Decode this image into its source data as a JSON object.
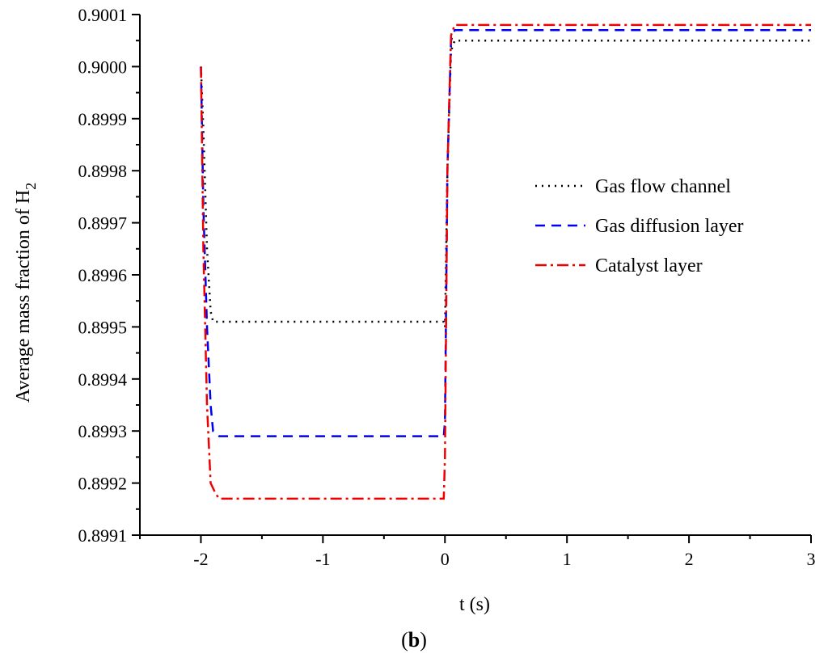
{
  "chart_data": {
    "type": "line",
    "xlabel": "t (s)",
    "ylabel_main": "Average mass fraction of H",
    "ylabel_sub": "2",
    "xlim": [
      -2.5,
      3
    ],
    "ylim": [
      0.8991,
      0.9001
    ],
    "x_ticks": [
      -2,
      -1,
      0,
      1,
      2,
      3
    ],
    "x_tick_labels": [
      "-2",
      "-1",
      "0",
      "1",
      "2",
      "3"
    ],
    "y_ticks": [
      0.8991,
      0.8992,
      0.8993,
      0.8994,
      0.8995,
      0.8996,
      0.8997,
      0.8998,
      0.8999,
      0.9,
      0.9001
    ],
    "y_tick_labels": [
      "0.8991",
      "0.8992",
      "0.8993",
      "0.8994",
      "0.8995",
      "0.8996",
      "0.8997",
      "0.8998",
      "0.8999",
      "0.9000",
      "0.9001"
    ],
    "grid": false,
    "legend_position": "right",
    "series": [
      {
        "name": "Gas flow channel",
        "color": "#000000",
        "dash": "dotted",
        "x": [
          -2.0,
          -1.98,
          -1.95,
          -1.92,
          -1.9,
          -1.85,
          -0.01,
          0.0,
          0.02,
          0.05,
          0.08,
          0.1,
          3.0
        ],
        "y": [
          0.9,
          0.89988,
          0.89965,
          0.89953,
          0.89951,
          0.89951,
          0.89951,
          0.8995,
          0.8998,
          0.90003,
          0.90005,
          0.90005,
          0.90005
        ]
      },
      {
        "name": "Gas diffusion layer",
        "color": "#0000ee",
        "dash": "dashed",
        "x": [
          -2.0,
          -1.98,
          -1.95,
          -1.92,
          -1.9,
          -1.85,
          -1.8,
          -0.01,
          0.0,
          0.02,
          0.05,
          0.08,
          0.1,
          3.0
        ],
        "y": [
          0.9,
          0.89973,
          0.8995,
          0.89935,
          0.8993,
          0.89929,
          0.89929,
          0.89929,
          0.89932,
          0.8998,
          0.90005,
          0.90007,
          0.90007,
          0.90007
        ]
      },
      {
        "name": "Catalyst layer",
        "color": "#ee0000",
        "dash": "dashdot",
        "x": [
          -2.0,
          -1.98,
          -1.95,
          -1.92,
          -1.88,
          -1.85,
          -1.8,
          -0.01,
          0.0,
          0.02,
          0.05,
          0.08,
          0.1,
          3.0
        ],
        "y": [
          0.9,
          0.89965,
          0.89935,
          0.8992,
          0.89918,
          0.89917,
          0.89917,
          0.89917,
          0.89925,
          0.8998,
          0.90006,
          0.90008,
          0.90008,
          0.90008
        ]
      }
    ]
  },
  "caption": {
    "open": "(",
    "letter": "b",
    "close": ")"
  }
}
